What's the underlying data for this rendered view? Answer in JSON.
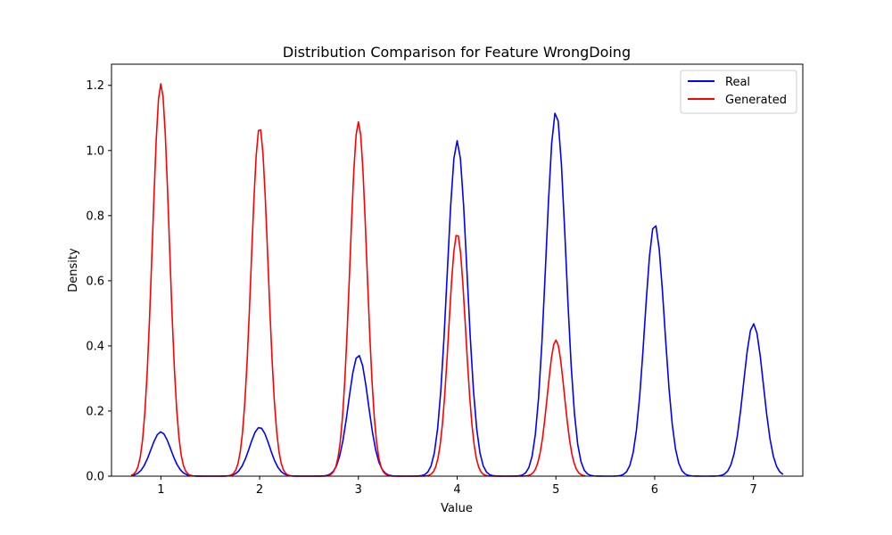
{
  "chart_data": {
    "type": "line",
    "title": "Distribution Comparison for Feature WrongDoing",
    "xlabel": "Value",
    "ylabel": "Density",
    "xlim": [
      0.5,
      7.5
    ],
    "ylim": [
      0,
      1.265
    ],
    "xticks": [
      "1",
      "2",
      "3",
      "4",
      "5",
      "6",
      "7"
    ],
    "yticks": [
      "0.0",
      "0.2",
      "0.4",
      "0.6",
      "0.8",
      "1.0",
      "1.2"
    ],
    "grid": false,
    "legend_position": "top-right",
    "series": [
      {
        "name": "Real",
        "color": "#0000ff",
        "x_range": [
          0.7,
          7.3
        ],
        "sigma": 0.1,
        "peaks": [
          {
            "x": 1,
            "density": 0.136
          },
          {
            "x": 2,
            "density": 0.15
          },
          {
            "x": 3,
            "density": 0.372
          },
          {
            "x": 4,
            "density": 1.03
          },
          {
            "x": 5,
            "density": 1.12
          },
          {
            "x": 6,
            "density": 0.775
          },
          {
            "x": 7,
            "density": 0.468
          }
        ]
      },
      {
        "name": "Generated",
        "color": "#ff0000",
        "x_range": [
          0.7,
          5.3
        ],
        "sigma": 0.085,
        "peaks": [
          {
            "x": 1,
            "density": 1.205
          },
          {
            "x": 2,
            "density": 1.072
          },
          {
            "x": 3,
            "density": 1.088
          },
          {
            "x": 4,
            "density": 0.745
          },
          {
            "x": 5,
            "density": 0.418
          }
        ]
      }
    ]
  }
}
